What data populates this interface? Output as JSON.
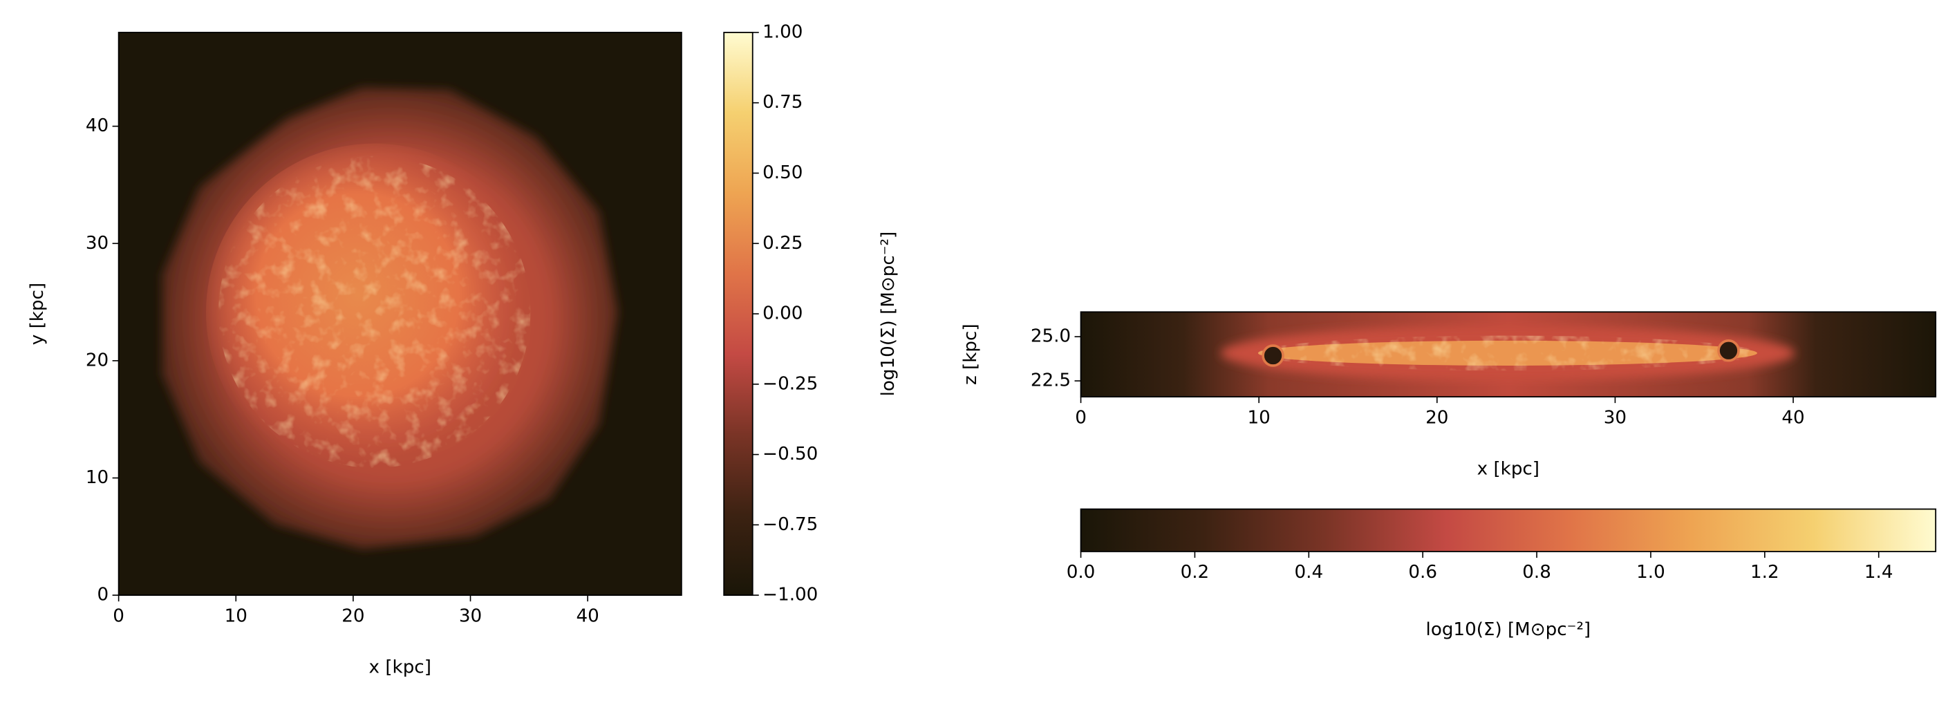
{
  "chart_data": [
    {
      "type": "image",
      "xlabel": "x [kpc]",
      "ylabel": "y [kpc]",
      "xlim": [
        0,
        48
      ],
      "ylim": [
        0,
        48
      ],
      "xticks": [
        0,
        10,
        20,
        30,
        40
      ],
      "yticks": [
        0,
        10,
        20,
        30,
        40
      ],
      "colorbar": {
        "orientation": "vertical",
        "label": "log10(Σ) [M⊙pc⁻²]",
        "lim": [
          -1,
          1
        ],
        "ticks": [
          {
            "value": -1,
            "label": "−1.00"
          },
          {
            "value": -0.75,
            "label": "−0.75"
          },
          {
            "value": -0.5,
            "label": "−0.50"
          },
          {
            "value": -0.25,
            "label": "−0.25"
          },
          {
            "value": 0,
            "label": "0.00"
          },
          {
            "value": 0.25,
            "label": "0.25"
          },
          {
            "value": 0.5,
            "label": "0.50"
          },
          {
            "value": 0.75,
            "label": "0.75"
          },
          {
            "value": 1,
            "label": "1.00"
          }
        ],
        "colors": [
          "#1a1608",
          "#3c2212",
          "#7a3426",
          "#c44a44",
          "#e07448",
          "#eea452",
          "#f5d070",
          "#fffbd0"
        ]
      }
    },
    {
      "type": "image",
      "xlabel": "x [kpc]",
      "ylabel": "z [kpc]",
      "xlim": [
        0,
        48
      ],
      "ylim": [
        21.6,
        26.4
      ],
      "xticks": [
        0,
        10,
        20,
        30,
        40
      ],
      "yticks": [
        {
          "value": 22.5,
          "label": "22.5"
        },
        {
          "value": 25,
          "label": "25.0"
        }
      ],
      "colorbar": {
        "orientation": "horizontal",
        "label": "log10(Σ) [M⊙pc⁻²]",
        "lim": [
          0,
          1.5
        ],
        "ticks": [
          {
            "value": 0,
            "label": "0.0"
          },
          {
            "value": 0.2,
            "label": "0.2"
          },
          {
            "value": 0.4,
            "label": "0.4"
          },
          {
            "value": 0.6,
            "label": "0.6"
          },
          {
            "value": 0.8,
            "label": "0.8"
          },
          {
            "value": 1,
            "label": "1.0"
          },
          {
            "value": 1.2,
            "label": "1.2"
          },
          {
            "value": 1.4,
            "label": "1.4"
          }
        ],
        "colors": [
          "#1a1608",
          "#3c2212",
          "#7a3426",
          "#c44a44",
          "#e07448",
          "#eea452",
          "#f5d070",
          "#fffbd0"
        ]
      }
    }
  ]
}
